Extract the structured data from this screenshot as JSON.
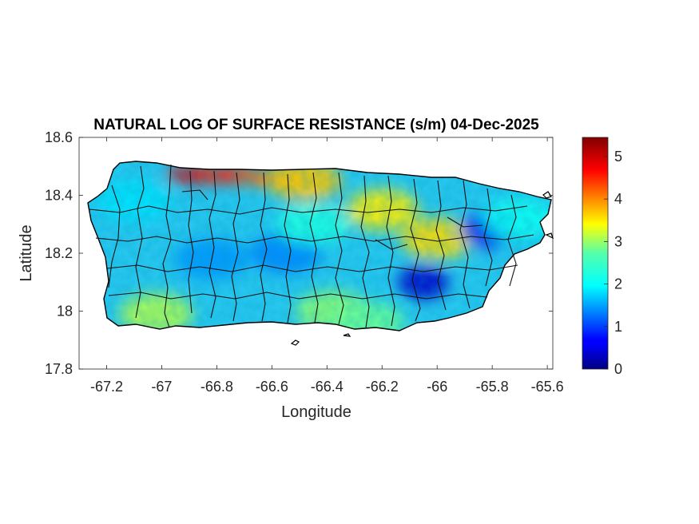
{
  "title": "NATURAL LOG OF SURFACE RESISTANCE (s/m) 04-Dec-2025",
  "xlabel": "Longitude",
  "ylabel": "Latitude",
  "chart_data": {
    "type": "heatmap",
    "title": "NATURAL LOG OF SURFACE RESISTANCE (s/m) 04-Dec-2025",
    "xlabel": "Longitude",
    "ylabel": "Latitude",
    "xlim": [
      -67.3,
      -65.58
    ],
    "ylim": [
      17.8,
      18.6
    ],
    "x_ticks": [
      -67.2,
      -67,
      -66.8,
      -66.6,
      -66.4,
      -66.2,
      -66,
      -65.8,
      -65.6
    ],
    "x_tick_labels": [
      "-67.2",
      "-67",
      "-66.8",
      "-66.6",
      "-66.4",
      "-66.2",
      "-66",
      "-65.8",
      "-65.6"
    ],
    "y_ticks": [
      17.8,
      18,
      18.2,
      18.4,
      18.6
    ],
    "y_tick_labels": [
      "17.8",
      "18",
      "18.2",
      "18.4",
      "18.6"
    ],
    "colorbar": {
      "colormap": "jet",
      "clim": [
        0,
        5.45
      ],
      "ticks": [
        0,
        1,
        2,
        3,
        4,
        5
      ],
      "tick_labels": [
        "0",
        "1",
        "2",
        "3",
        "4",
        "5"
      ]
    },
    "grid": false,
    "regions": [
      {
        "lon": -66.87,
        "lat": 18.47,
        "value": 4.9
      },
      {
        "lon": -66.75,
        "lat": 18.47,
        "value": 4.6
      },
      {
        "lon": -66.6,
        "lat": 18.46,
        "value": 4.2
      },
      {
        "lon": -66.48,
        "lat": 18.45,
        "value": 3.7
      },
      {
        "lon": -66.2,
        "lat": 18.35,
        "value": 3.5
      },
      {
        "lon": -66.0,
        "lat": 18.25,
        "value": 3.6
      },
      {
        "lon": -66.05,
        "lat": 18.1,
        "value": 0.4
      },
      {
        "lon": -65.82,
        "lat": 18.28,
        "value": 0.6
      },
      {
        "lon": -66.55,
        "lat": 18.2,
        "value": 1.4
      },
      {
        "lon": -66.82,
        "lat": 18.18,
        "value": 1.5
      },
      {
        "lon": -67.1,
        "lat": 18.38,
        "value": 1.9
      },
      {
        "lon": -67.02,
        "lat": 17.99,
        "value": 3.0
      },
      {
        "lon": -66.38,
        "lat": 18.0,
        "value": 2.8
      },
      {
        "lon": -66.25,
        "lat": 17.96,
        "value": 2.6
      },
      {
        "lon": -66.45,
        "lat": 18.3,
        "value": 2.2
      },
      {
        "lon": -65.7,
        "lat": 18.32,
        "value": 2.1
      }
    ]
  }
}
